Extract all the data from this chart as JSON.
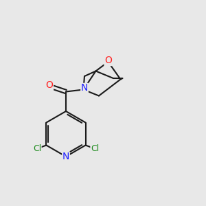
{
  "background_color": "#e8e8e8",
  "bond_color": "#1a1a1a",
  "bond_width": 1.5,
  "atom_colors": {
    "C": "#1a1a1a",
    "N": "#2020ff",
    "O_carbonyl": "#ff2020",
    "O_ether": "#ff2020",
    "Cl": "#1a8a1a",
    "N_pyridine": "#2020ff"
  },
  "font_size": 9,
  "fig_size": [
    3.0,
    3.0
  ],
  "dpi": 100
}
